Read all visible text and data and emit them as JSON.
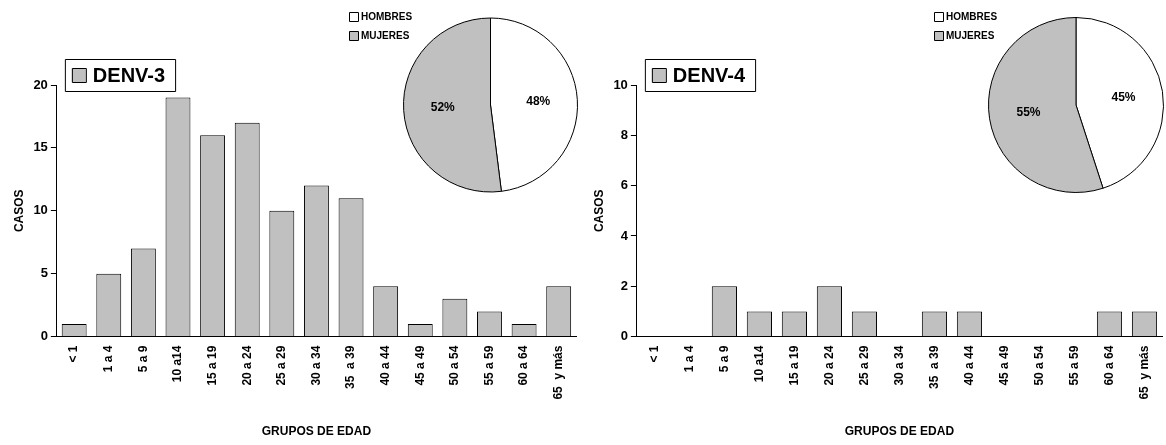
{
  "chart_data": [
    {
      "type": "bar",
      "categories": [
        "< 1",
        "1 a 4",
        "5 a 9",
        "10 a14",
        "15 a 19",
        "20 a 24",
        "25 a 29",
        "30 a 34",
        "35  a 39",
        "40 a 44",
        "45 a 49",
        "50 a 54",
        "55 a 59",
        "60 a 64",
        "65  y más"
      ],
      "series": [
        {
          "name": "DENV-3",
          "color": "#c0c0c0",
          "values": [
            1,
            5,
            7,
            19,
            16,
            17,
            10,
            12,
            11,
            4,
            1,
            3,
            2,
            1,
            4
          ]
        }
      ],
      "ylim": [
        0,
        20
      ],
      "yticks": [
        0,
        5,
        10,
        15,
        20
      ],
      "xlabel": "GRUPOS DE EDAD",
      "ylabel": "CASOS",
      "legend": "top left"
    },
    {
      "type": "pie",
      "categories": [
        "HOMBRES",
        "MUJERES"
      ],
      "values": [
        48,
        52
      ],
      "colors": [
        "#ffffff",
        "#c0c0c0"
      ],
      "value_labels": [
        "48%",
        "52%"
      ],
      "legend": "top left"
    },
    {
      "type": "bar",
      "categories": [
        "< 1",
        "1 a 4",
        "5 a 9",
        "10 a14",
        "15 a 19",
        "20 a 24",
        "25 a 29",
        "30 a 34",
        "35  a 39",
        "40 a 44",
        "45 a 49",
        "50 a 54",
        "55 a 59",
        "60 a 64",
        "65  y más"
      ],
      "series": [
        {
          "name": "DENV-4",
          "color": "#c0c0c0",
          "values": [
            0,
            0,
            2,
            1,
            1,
            2,
            1,
            0,
            1,
            1,
            0,
            0,
            0,
            1,
            1
          ]
        }
      ],
      "ylim": [
        0,
        10
      ],
      "yticks": [
        0,
        2,
        4,
        6,
        8,
        10
      ],
      "xlabel": "GRUPOS DE EDAD",
      "ylabel": "CASOS",
      "legend": "top left"
    },
    {
      "type": "pie",
      "categories": [
        "HOMBRES",
        "MUJERES"
      ],
      "values": [
        45,
        55
      ],
      "colors": [
        "#ffffff",
        "#c0c0c0"
      ],
      "value_labels": [
        "45%",
        "55%"
      ],
      "legend": "top left"
    }
  ]
}
